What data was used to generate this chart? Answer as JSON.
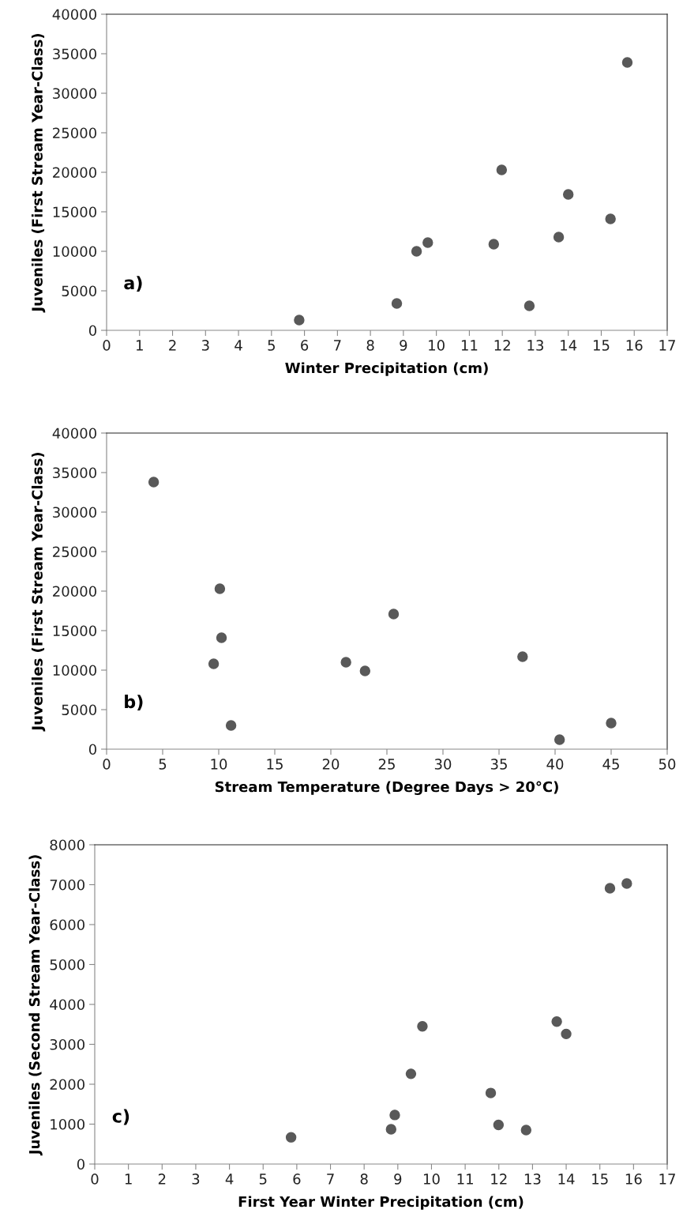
{
  "chart_data": [
    {
      "type": "scatter",
      "xlabel": "Winter Precipitation (cm)",
      "ylabel": "Juveniles (First Stream Year-Class)",
      "annotations": [
        "a)"
      ],
      "x": [
        5.84,
        8.8,
        9.4,
        9.74,
        11.74,
        11.98,
        12.82,
        13.71,
        14.0,
        15.28,
        15.79
      ],
      "series": [
        {
          "color": "#595959",
          "values": [
            1300,
            3400,
            10000,
            11100,
            10900,
            20300,
            3100,
            11800,
            17200,
            14100,
            33900
          ]
        }
      ],
      "xlim": [
        0,
        17
      ],
      "xticks": [
        0,
        1,
        2,
        3,
        4,
        5,
        6,
        7,
        8,
        9,
        10,
        11,
        12,
        13,
        14,
        15,
        16,
        17
      ],
      "ylim": [
        0,
        40000
      ],
      "yticks": [
        0,
        5000,
        10000,
        15000,
        20000,
        25000,
        30000,
        35000,
        40000
      ],
      "grid": false,
      "marker": "circle"
    },
    {
      "type": "scatter",
      "xlabel": "Stream Temperature (Degree Days > 20°C)",
      "ylabel": "Juveniles (First Stream Year-Class)",
      "annotations": [
        "b)"
      ],
      "x": [
        4.2,
        10.1,
        10.25,
        9.55,
        11.1,
        21.35,
        23.05,
        25.6,
        37.1,
        40.4,
        45.0
      ],
      "series": [
        {
          "color": "#595959",
          "values": [
            33800,
            20300,
            14100,
            10800,
            3000,
            11000,
            9900,
            17100,
            11700,
            1200,
            3300
          ]
        }
      ],
      "xlim": [
        0,
        50
      ],
      "xticks": [
        0,
        5,
        10,
        15,
        20,
        25,
        30,
        35,
        40,
        45,
        50
      ],
      "ylim": [
        0,
        40000
      ],
      "yticks": [
        0,
        5000,
        10000,
        15000,
        20000,
        25000,
        30000,
        35000,
        40000
      ],
      "grid": false,
      "marker": "circle"
    },
    {
      "type": "scatter",
      "xlabel": "First Year Winter Precipitation (cm)",
      "ylabel": "Juveniles (Second Stream Year-Class)",
      "annotations": [
        "c)"
      ],
      "x": [
        5.83,
        8.8,
        8.91,
        9.39,
        9.73,
        11.76,
        11.99,
        12.81,
        13.72,
        14.0,
        15.3,
        15.8
      ],
      "series": [
        {
          "color": "#595959",
          "values": [
            670,
            870,
            1230,
            2260,
            3450,
            1780,
            980,
            850,
            3570,
            3260,
            6910,
            7030
          ]
        }
      ],
      "xlim": [
        0,
        17
      ],
      "xticks": [
        0,
        1,
        2,
        3,
        4,
        5,
        6,
        7,
        8,
        9,
        10,
        11,
        12,
        13,
        14,
        15,
        16,
        17
      ],
      "ylim": [
        0,
        8000
      ],
      "yticks": [
        0,
        1000,
        2000,
        3000,
        4000,
        5000,
        6000,
        7000,
        8000
      ],
      "grid": false,
      "marker": "circle"
    }
  ]
}
